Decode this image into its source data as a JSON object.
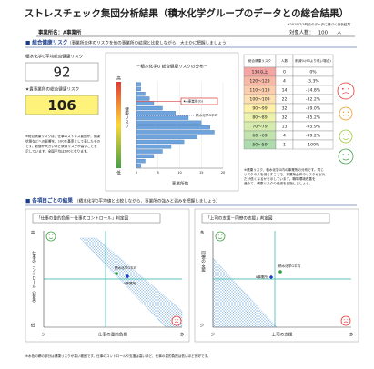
{
  "header": {
    "title": "ストレスチェック集団分析結果（積水化学グループのデータとの総合結果）",
    "note": "※2019/7/1時点のデータに基づく分析結果",
    "office": "事業所名：A事業所",
    "target_label": "対象人数：",
    "target_count": 100,
    "target_unit": "人"
  },
  "section1": {
    "heading": "■ 総合健康リスク",
    "heading_note": "（事業所全体のリスクを他の事業所の結果と比較しながら、大まかに把握しましょう）",
    "group_label": "積水化学G平均総合健康リスク",
    "group_value": 92,
    "office_label": "★貴事業所の総合健康リスク",
    "office_value": 106,
    "note": [
      "※総合健康リスクは、仕事のストレス要因が、健康",
      "状態などへの影響を、100を基準として表したもの",
      "です。数値が大きいほど健康リスクが高いことを",
      "示しています。全国平均は100となります。"
    ]
  },
  "distribution": {
    "title": "－積水化学G 総合健康リスクの分布－",
    "high": "高",
    "low": "低",
    "y_label": "健康リスク",
    "x_label": "事業所数",
    "values": [
      1,
      1,
      2,
      3,
      4,
      6,
      9,
      12,
      15,
      17,
      18,
      14,
      11,
      8,
      6,
      4,
      2,
      1
    ],
    "xlim": [
      0,
      20
    ],
    "xticks": [
      0,
      5,
      10,
      15,
      20
    ],
    "office_marker": "★A事業所(G)",
    "group_marker": "積水化学G平均"
  },
  "risk_table": {
    "columns": [
      "総合健康リスク",
      "人数",
      "削減%(93より低い場合)"
    ],
    "rows": [
      [
        "130以上",
        0,
        "0%"
      ],
      [
        "120〜129",
        4,
        "-3.3%"
      ],
      [
        "110〜119",
        14,
        "-14.8%"
      ],
      [
        "100〜109",
        22,
        "-32.2%"
      ],
      [
        "90〜99",
        32,
        "-59.0%"
      ],
      [
        "80〜89",
        32,
        "-85.2%"
      ],
      [
        "70〜79",
        13,
        "-95.9%"
      ],
      [
        "60〜69",
        4,
        "-99.2%"
      ],
      [
        "50〜59",
        1,
        "-100%"
      ]
    ]
  },
  "table_note": [
    "※健康リスク、積水化学G内の事業所の分布です。同じ",
    "リスクの人を減らすことで、事業所全体のリスクがどれ",
    "だけ低くなるかを示しています。職場環境改善を",
    "進めて、健康リスクの低減を目指しましょう。"
  ],
  "section2": {
    "heading": "■ 各項目ごとの結果",
    "heading_note": "（積水化学G平均値と比較しながら、事業所の強みと弱みを把握しましょう）"
  },
  "quadrant_charts": [
    {
      "title": "「仕事の量的負担－仕事のコントロール」判定図",
      "y_label": "仕事のコントロール（裁量）",
      "x_label": "仕事の量的負担",
      "high": "高",
      "low": "低",
      "few": "少",
      "many": "多",
      "group_label": "積水化学G平均",
      "office_label": "A事業所"
    },
    {
      "title": "「上司の支援－同僚の支援」判定図",
      "y_label": "同僚の支援",
      "x_label": "上司の支援",
      "high": "多",
      "low": "少",
      "few": "少",
      "many": "多",
      "group_label": "積水化学G平均",
      "office_label": "A事業所"
    }
  ],
  "footer": "※水色の網の部分は健康リスクが高い範囲です。仕事のコントロールや支援は高いほど、仕事の量的負担は低いほど良好です。"
}
